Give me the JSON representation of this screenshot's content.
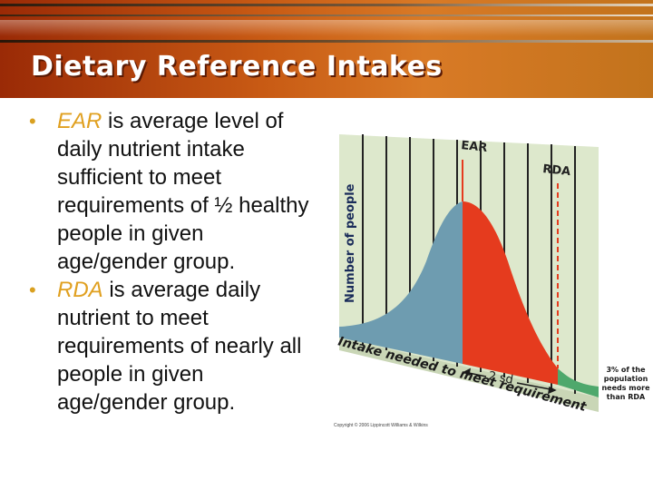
{
  "slide": {
    "title": "Dietary Reference Intakes",
    "bullets": [
      {
        "term": "EAR",
        "text": " is average level of daily nutrient intake sufficient to meet requirements of ½ healthy people in given age/gender group."
      },
      {
        "term": "RDA",
        "text": " is average daily nutrient to meet requirements of nearly all people in given age/gender group."
      }
    ]
  },
  "figure": {
    "y_axis_label": "Number of people",
    "x_axis_label": "Intake needed to meet requirement",
    "ear_label": "EAR",
    "rda_label": "RDA",
    "sd_label": "2 sd",
    "note_lines": [
      "3% of the",
      "population",
      "needs more",
      "than RDA"
    ],
    "copyright": "Copyright © 2006 Lippincott Williams & Wilkins",
    "colors": {
      "blue": "#6e9cb0",
      "red": "#e53b1e",
      "green": "#4ea86c",
      "wall": "#dde8cc"
    }
  }
}
